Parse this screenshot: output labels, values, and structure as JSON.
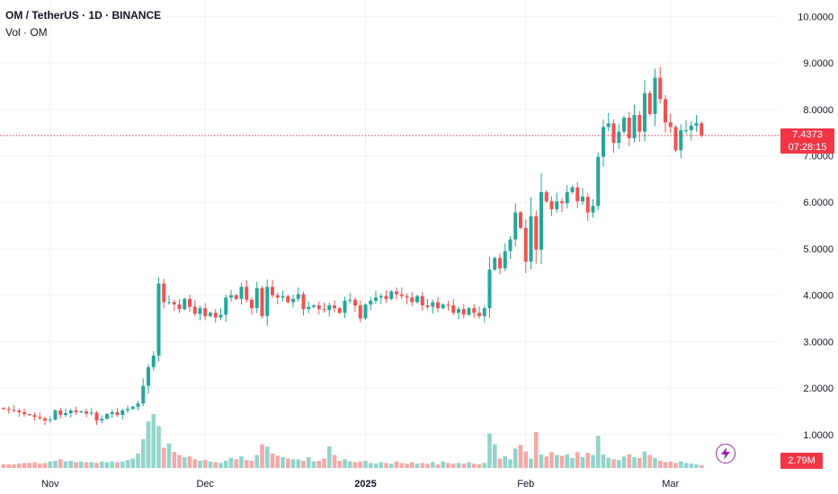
{
  "legend": {
    "title": "OM / TetherUS · 1D · BINANCE",
    "volume": "Vol · OM"
  },
  "last_price": {
    "price": "7.4373",
    "countdown": "07:28:15",
    "color": "#f23645"
  },
  "volume_tag": "2.79M",
  "colors": {
    "up": "#26a69a",
    "down": "#ef5350",
    "up_vol": "#92d3cb",
    "down_vol": "#f3a9a7",
    "grid": "#f0f3fa",
    "text": "#131722"
  },
  "icons": {
    "alert": "lightning-icon"
  },
  "chart_data": {
    "type": "candlestick",
    "title": "OM / TetherUS · 1D · BINANCE",
    "ylabel": "",
    "xlabel": "",
    "ylim": [
      0.3,
      10.2
    ],
    "y_ticks": [
      "1.0000",
      "2.0000",
      "3.0000",
      "4.0000",
      "5.0000",
      "6.0000",
      "7.0000",
      "8.0000",
      "9.0000",
      "10.0000"
    ],
    "x_ticks": [
      {
        "label": "Nov",
        "day": 9
      },
      {
        "label": "Dec",
        "day": 39
      },
      {
        "label": "2025",
        "day": 70
      },
      {
        "label": "Feb",
        "day": 101
      },
      {
        "label": "Mar",
        "day": 129
      }
    ],
    "first_date": "2024-10-23",
    "closes": [
      1.55,
      1.53,
      1.52,
      1.48,
      1.44,
      1.42,
      1.38,
      1.35,
      1.3,
      1.32,
      1.52,
      1.42,
      1.46,
      1.52,
      1.48,
      1.5,
      1.45,
      1.47,
      1.3,
      1.34,
      1.44,
      1.48,
      1.42,
      1.52,
      1.55,
      1.6,
      1.67,
      2.05,
      2.45,
      2.7,
      4.25,
      3.85,
      3.85,
      3.8,
      3.7,
      3.92,
      3.75,
      3.6,
      3.72,
      3.55,
      3.62,
      3.52,
      3.58,
      3.95,
      4.0,
      3.92,
      4.18,
      3.9,
      3.72,
      4.15,
      3.55,
      4.18,
      4.0,
      3.95,
      3.98,
      3.85,
      3.92,
      4.02,
      3.7,
      3.75,
      3.78,
      3.7,
      3.68,
      3.78,
      3.72,
      3.62,
      3.88,
      3.9,
      3.78,
      3.5,
      3.8,
      3.88,
      3.95,
      3.98,
      3.92,
      4.08,
      4.02,
      3.98,
      3.95,
      3.85,
      3.98,
      3.78,
      3.75,
      3.85,
      3.72,
      3.8,
      3.78,
      3.62,
      3.7,
      3.58,
      3.72,
      3.62,
      3.55,
      3.72,
      4.55,
      4.8,
      4.58,
      4.95,
      5.2,
      5.78,
      5.45,
      4.72,
      5.7,
      4.98,
      6.22,
      6.02,
      5.85,
      6.02,
      5.98,
      6.22,
      6.32,
      6.02,
      6.12,
      5.78,
      5.92,
      6.98,
      7.62,
      7.7,
      7.28,
      7.52,
      7.82,
      7.38,
      7.88,
      7.52,
      8.35,
      7.9,
      8.68,
      8.22,
      7.72,
      7.62,
      7.12,
      7.55,
      7.55,
      7.65,
      7.7,
      7.44
    ],
    "volume_max": "relative",
    "volumes": [
      0.05,
      0.05,
      0.05,
      0.06,
      0.07,
      0.07,
      0.08,
      0.06,
      0.07,
      0.09,
      0.1,
      0.12,
      0.09,
      0.1,
      0.08,
      0.09,
      0.08,
      0.08,
      0.07,
      0.09,
      0.08,
      0.09,
      0.08,
      0.09,
      0.11,
      0.13,
      0.2,
      0.4,
      0.65,
      0.75,
      0.58,
      0.28,
      0.34,
      0.22,
      0.18,
      0.15,
      0.16,
      0.12,
      0.1,
      0.11,
      0.09,
      0.08,
      0.07,
      0.1,
      0.14,
      0.12,
      0.16,
      0.11,
      0.1,
      0.18,
      0.33,
      0.3,
      0.2,
      0.17,
      0.15,
      0.13,
      0.12,
      0.12,
      0.1,
      0.15,
      0.09,
      0.1,
      0.13,
      0.3,
      0.18,
      0.1,
      0.12,
      0.09,
      0.08,
      0.09,
      0.1,
      0.07,
      0.06,
      0.08,
      0.07,
      0.06,
      0.09,
      0.07,
      0.06,
      0.08,
      0.06,
      0.07,
      0.06,
      0.08,
      0.05,
      0.09,
      0.07,
      0.06,
      0.07,
      0.06,
      0.08,
      0.06,
      0.05,
      0.07,
      0.48,
      0.33,
      0.13,
      0.16,
      0.12,
      0.27,
      0.32,
      0.23,
      0.13,
      0.5,
      0.19,
      0.16,
      0.22,
      0.18,
      0.17,
      0.19,
      0.14,
      0.22,
      0.15,
      0.21,
      0.18,
      0.45,
      0.19,
      0.14,
      0.12,
      0.11,
      0.16,
      0.19,
      0.15,
      0.14,
      0.23,
      0.18,
      0.14,
      0.1,
      0.08,
      0.09,
      0.07,
      0.09,
      0.07,
      0.06,
      0.05,
      0.04
    ]
  }
}
